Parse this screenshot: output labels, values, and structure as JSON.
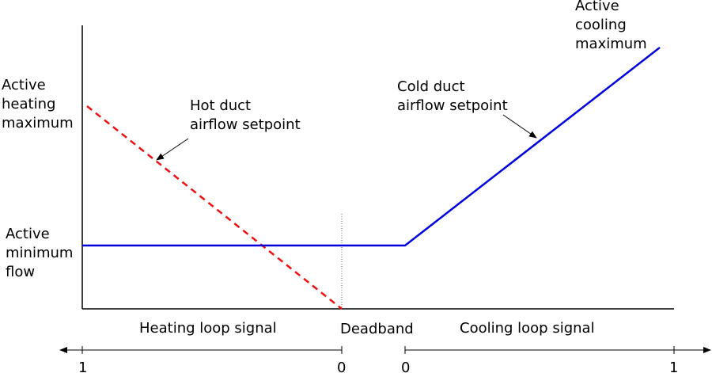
{
  "labels": {
    "active_heating_maximum": [
      "Active",
      "heating",
      "maximum"
    ],
    "active_minimum_flow": [
      "Active",
      "minimum",
      "flow"
    ],
    "active_cooling_maximum": [
      "Active",
      "cooling",
      "maximum"
    ],
    "hot_duct_setpoint": [
      "Hot duct",
      "airflow setpoint"
    ],
    "cold_duct_setpoint": [
      "Cold duct",
      "airflow setpoint"
    ],
    "heating_loop_signal": "Heating loop signal",
    "deadband": "Deadband",
    "cooling_loop_signal": "Cooling loop signal"
  },
  "scales": {
    "heating_left": "1",
    "heating_right": "0",
    "cooling_left": "0",
    "cooling_right": "1"
  },
  "colors": {
    "axis": "#000000",
    "cold_duct_line": "#0000dd",
    "hot_duct_line": "#ee1111"
  }
}
